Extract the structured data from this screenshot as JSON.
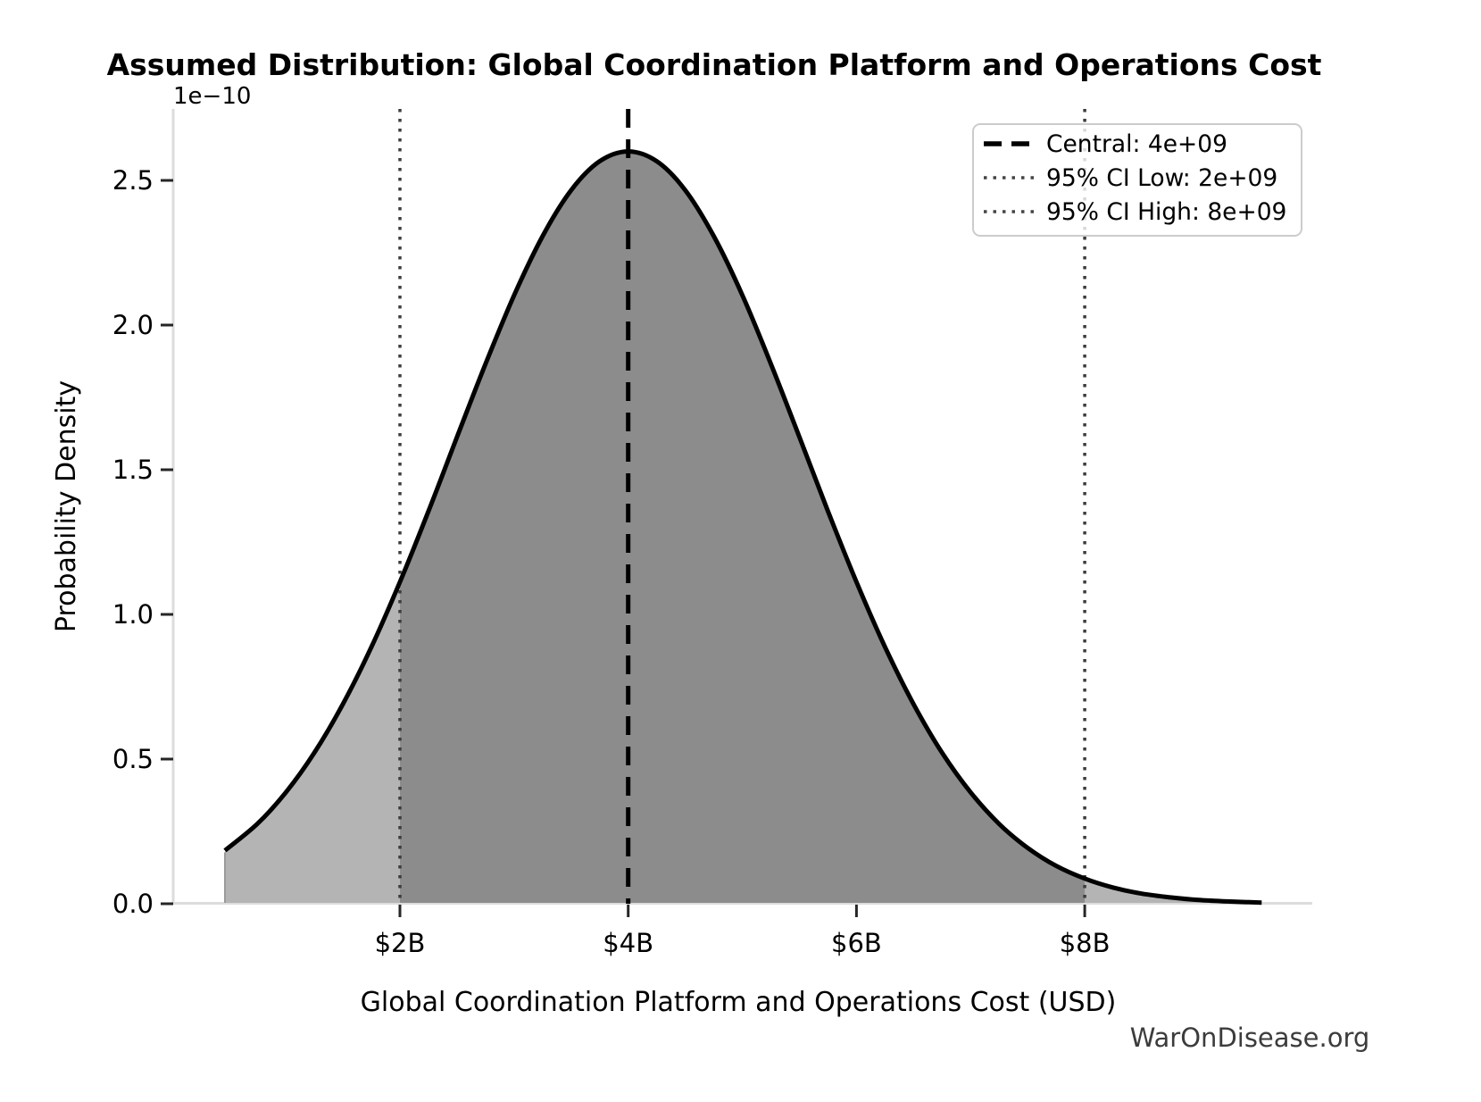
{
  "title": "Assumed Distribution: Global Coordination Platform and Operations Cost",
  "watermark": "WarOnDisease.org",
  "chart_data": {
    "type": "area",
    "title": "Assumed Distribution: Global Coordination Platform and Operations Cost",
    "xlabel": "Global Coordination Platform and Operations Cost (USD)",
    "ylabel": "Probability Density",
    "y_offset_label": "1e−10",
    "x_unit": "USD (billions)",
    "xlim_billions": [
      0.0,
      10.0
    ],
    "ylim_1e10": [
      0.0,
      2.75
    ],
    "grid": false,
    "legend_position": "upper right",
    "central": 4000000000.0,
    "ci_low": 2000000000.0,
    "ci_high": 8000000000.0,
    "x_ticks": {
      "values_billions": [
        2,
        4,
        6,
        8
      ],
      "labels": [
        "$2B",
        "$4B",
        "$6B",
        "$8B"
      ]
    },
    "y_ticks": {
      "values_1e10": [
        0.0,
        0.5,
        1.0,
        1.5,
        2.0,
        2.5
      ],
      "labels": [
        "0.0",
        "0.5",
        "1.0",
        "1.5",
        "2.0",
        "2.5"
      ]
    },
    "curve": {
      "x_billions": [
        0.467,
        0.75,
        1.0,
        1.25,
        1.5,
        1.75,
        2.0,
        2.25,
        2.5,
        2.75,
        3.0,
        3.25,
        3.5,
        3.75,
        4.0,
        4.25,
        4.5,
        4.75,
        5.0,
        5.25,
        5.5,
        5.75,
        6.0,
        6.25,
        6.5,
        6.75,
        7.0,
        7.25,
        7.5,
        7.75,
        8.0,
        8.25,
        8.5,
        8.75,
        9.0,
        9.25,
        9.55
      ],
      "density_1e10": [
        0.184,
        0.276,
        0.385,
        0.522,
        0.69,
        0.887,
        1.112,
        1.357,
        1.613,
        1.866,
        2.103,
        2.307,
        2.466,
        2.566,
        2.6,
        2.566,
        2.466,
        2.307,
        2.103,
        1.866,
        1.613,
        1.357,
        1.112,
        0.887,
        0.69,
        0.522,
        0.385,
        0.276,
        0.193,
        0.131,
        0.087,
        0.056,
        0.035,
        0.022,
        0.013,
        0.008,
        0.004
      ]
    },
    "legend": [
      {
        "label": "Central: 4e+09",
        "line": "dashed",
        "color": "#000000"
      },
      {
        "label": "95% CI Low: 2e+09",
        "line": "dotted",
        "color": "#444444"
      },
      {
        "label": "95% CI High: 8e+09",
        "line": "dotted",
        "color": "#444444"
      }
    ],
    "colors": {
      "curve": "#000000",
      "fill_outer": "#b4b4b4",
      "fill_inner": "#8c8c8c",
      "central_line": "#000000",
      "ci_line": "#3d3d3d",
      "spine": "#dcdcdc",
      "tick": "#262626"
    }
  }
}
